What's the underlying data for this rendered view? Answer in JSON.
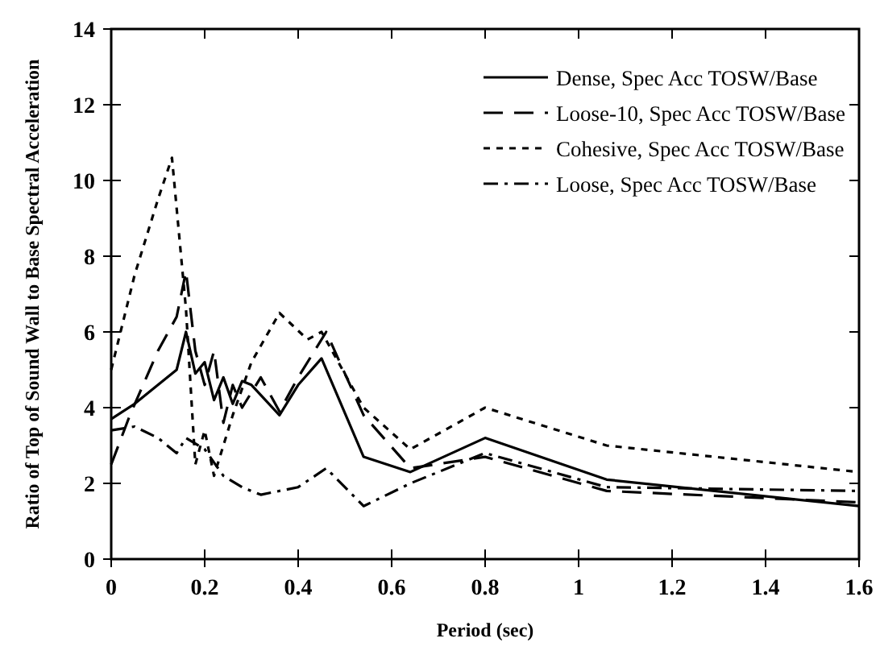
{
  "chart_data": {
    "type": "line",
    "xlabel": "Period (sec)",
    "ylabel": "Ratio of Top of Sound Wall to Base Spectral Acceleration",
    "xlim": [
      0,
      1.6
    ],
    "ylim": [
      0,
      14
    ],
    "xticks": [
      0,
      0.2,
      0.4,
      0.6,
      0.8,
      1,
      1.2,
      1.4,
      1.6
    ],
    "yticks": [
      0,
      2,
      4,
      6,
      8,
      10,
      12,
      14
    ],
    "legend": "top right",
    "grid": false,
    "marker": "none",
    "series": [
      {
        "name": "Dense, Spec Acc TOSW/Base",
        "color": "#000000",
        "line_style": "solid",
        "x": [
          0,
          0.05,
          0.1,
          0.14,
          0.16,
          0.18,
          0.2,
          0.22,
          0.24,
          0.26,
          0.28,
          0.3,
          0.36,
          0.4,
          0.45,
          0.54,
          0.64,
          0.8,
          1.06,
          1.6
        ],
        "values": [
          3.7,
          4.1,
          4.6,
          5.0,
          6.0,
          4.9,
          5.2,
          4.2,
          4.8,
          4.1,
          4.7,
          4.6,
          3.8,
          4.6,
          5.3,
          2.7,
          2.3,
          3.2,
          2.1,
          1.4
        ]
      },
      {
        "name": "Loose-10, Spec Acc TOSW/Base",
        "color": "#000000",
        "line_style": "dashed",
        "x": [
          0,
          0.04,
          0.1,
          0.14,
          0.16,
          0.18,
          0.2,
          0.22,
          0.24,
          0.26,
          0.28,
          0.32,
          0.36,
          0.4,
          0.46,
          0.54,
          0.64,
          0.8,
          1.06,
          1.6
        ],
        "values": [
          2.5,
          3.8,
          5.5,
          6.4,
          7.6,
          5.5,
          4.6,
          5.5,
          3.6,
          4.6,
          4.0,
          4.8,
          3.9,
          4.8,
          6.0,
          3.8,
          2.4,
          2.7,
          1.8,
          1.5
        ]
      },
      {
        "name": "Cohesive, Spec Acc TOSW/Base",
        "color": "#000000",
        "line_style": "dotted",
        "x": [
          0,
          0.05,
          0.1,
          0.13,
          0.16,
          0.18,
          0.2,
          0.22,
          0.26,
          0.3,
          0.36,
          0.42,
          0.45,
          0.54,
          0.64,
          0.8,
          1.06,
          1.6
        ],
        "values": [
          5.0,
          7.5,
          9.5,
          10.6,
          6.6,
          2.5,
          3.4,
          2.2,
          3.8,
          5.2,
          6.5,
          5.8,
          6.0,
          4.0,
          2.9,
          4.0,
          3.0,
          2.3
        ]
      },
      {
        "name": "Loose, Spec Acc TOSW/Base",
        "color": "#000000",
        "line_style": "dashdot",
        "x": [
          0,
          0.05,
          0.1,
          0.14,
          0.16,
          0.2,
          0.24,
          0.28,
          0.32,
          0.4,
          0.46,
          0.54,
          0.64,
          0.8,
          1.06,
          1.6
        ],
        "values": [
          3.4,
          3.5,
          3.2,
          2.8,
          3.2,
          2.9,
          2.2,
          1.9,
          1.7,
          1.9,
          2.4,
          1.4,
          2.0,
          2.8,
          1.9,
          1.8
        ]
      }
    ]
  }
}
